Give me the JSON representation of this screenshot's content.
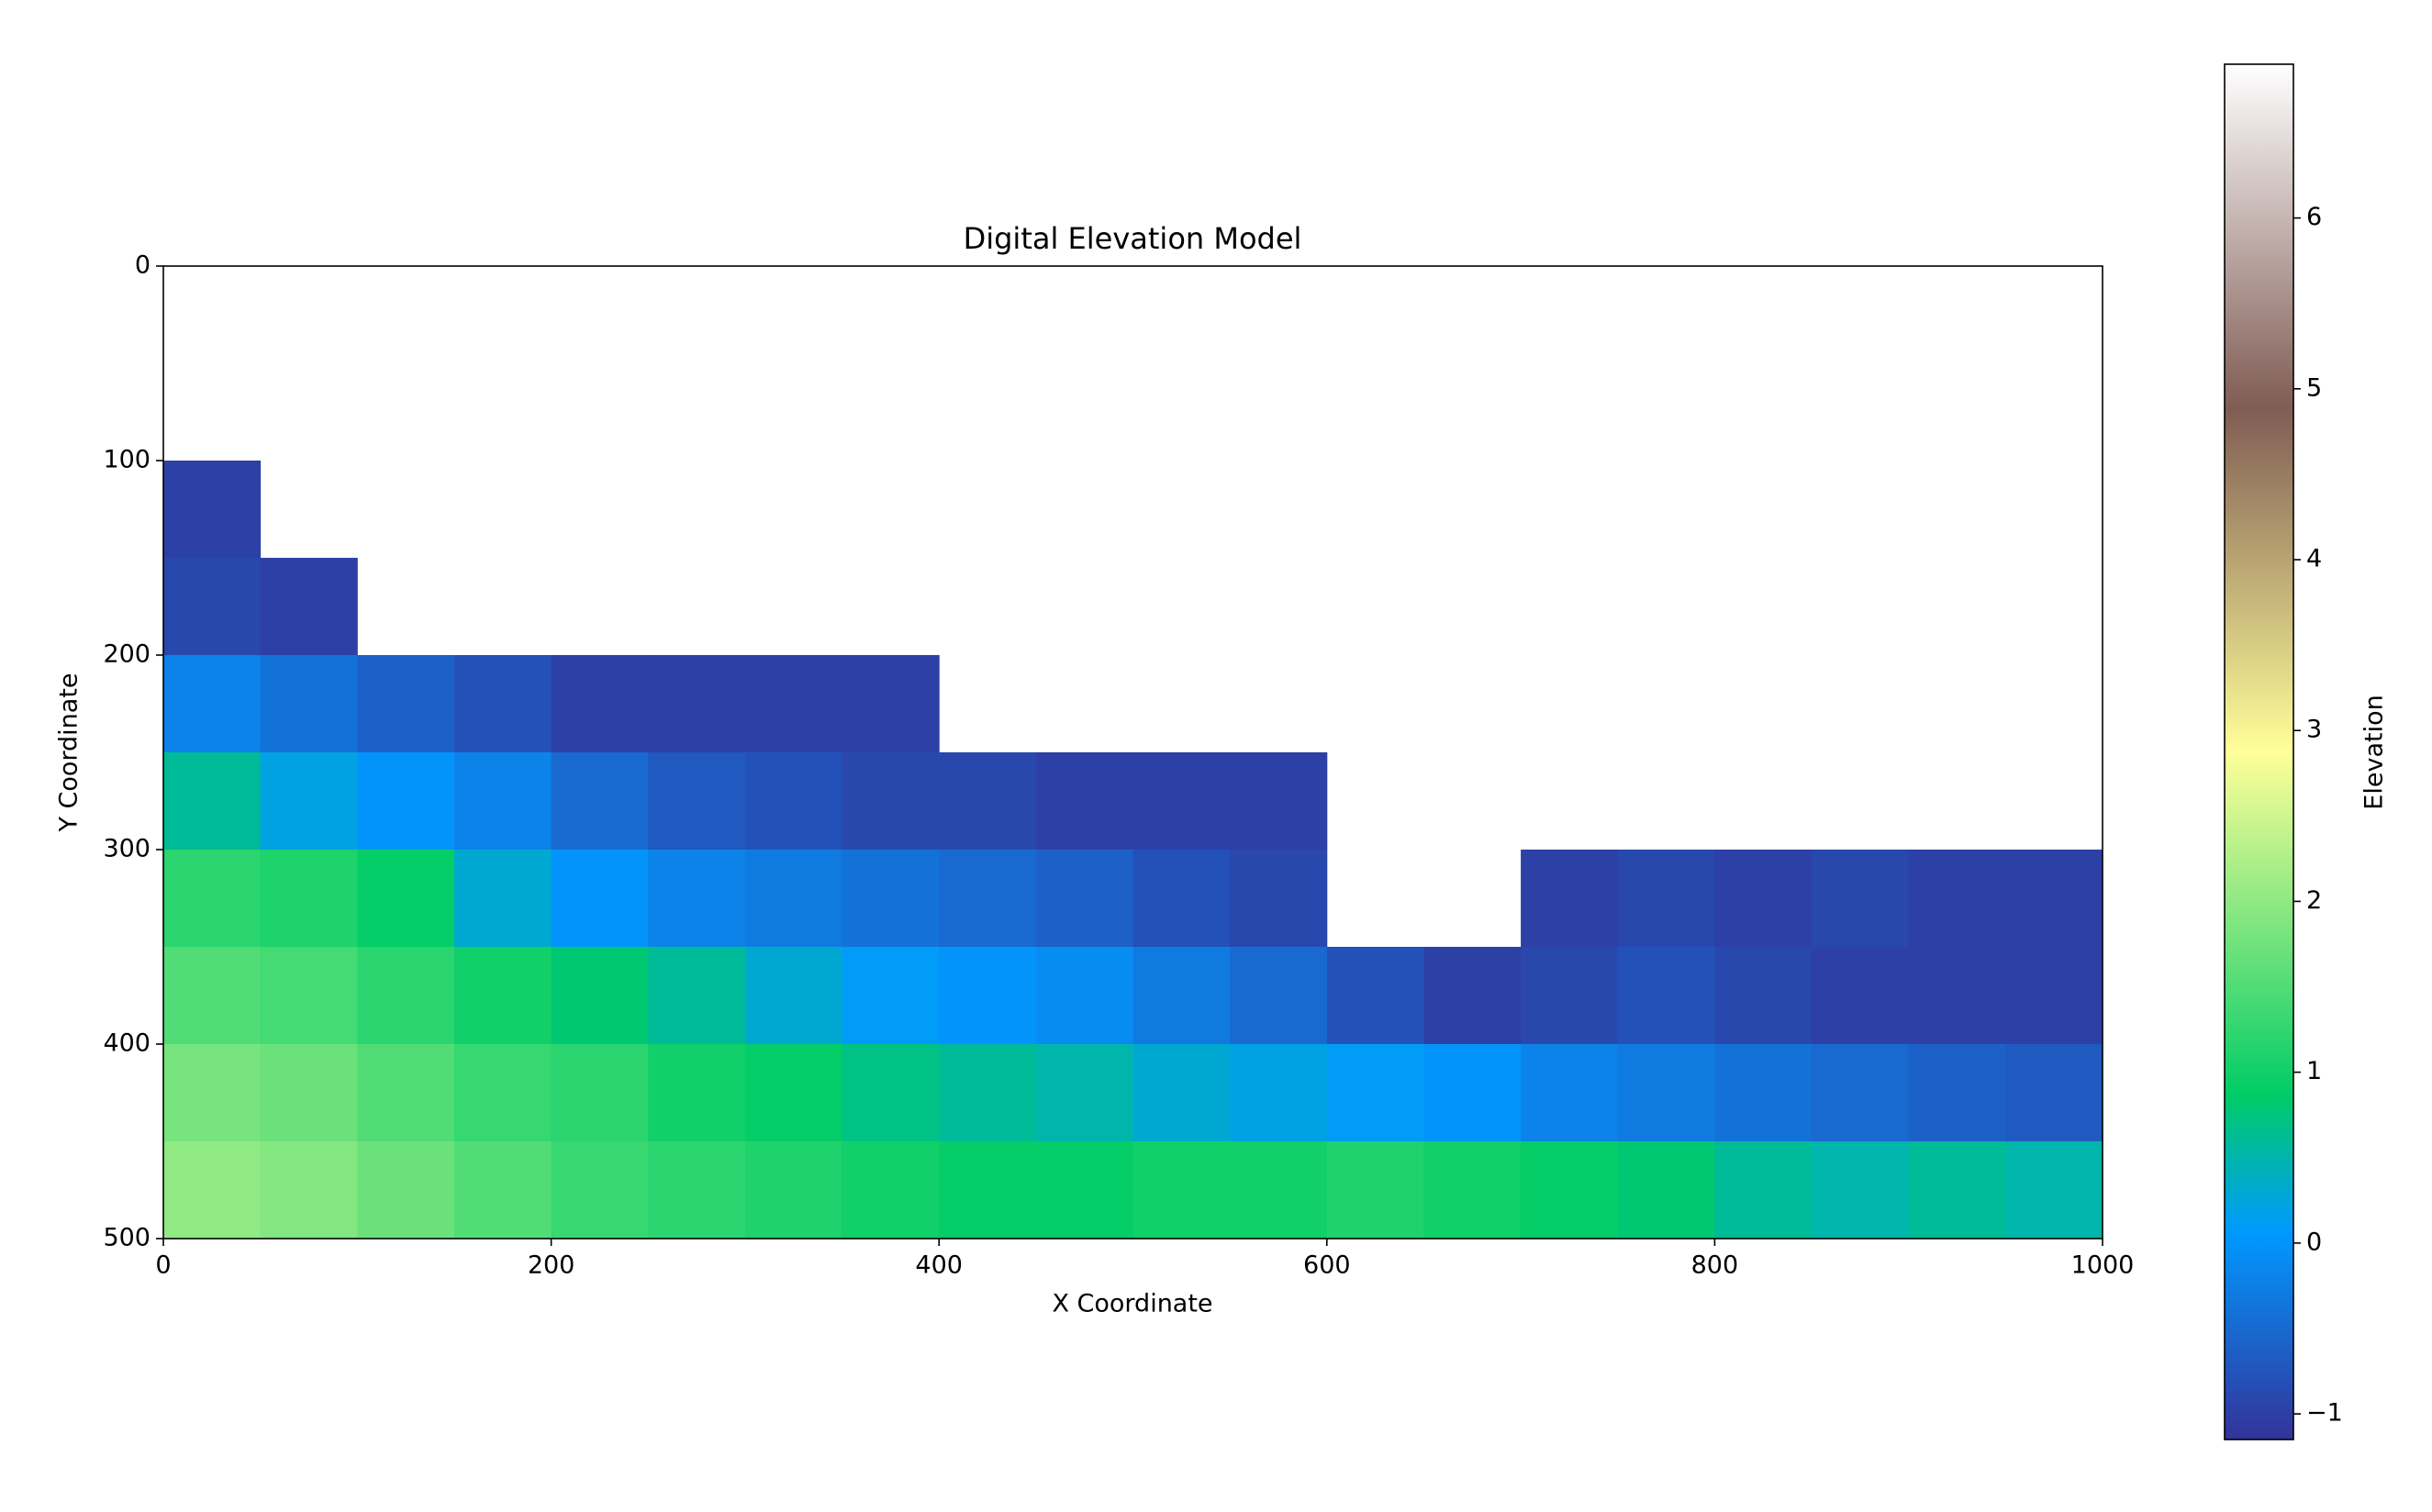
{
  "chart_data": {
    "type": "heatmap",
    "title": "Digital Elevation Model",
    "x_label": "X Coordinate",
    "y_label": "Y Coordinate",
    "xlim": [
      0,
      1000
    ],
    "ylim": [
      500,
      0
    ],
    "xticks": [
      0,
      200,
      400,
      600,
      800,
      1000
    ],
    "yticks": [
      0,
      100,
      200,
      300,
      400,
      500
    ],
    "colormap": "terrain",
    "colorbar": {
      "label": "Elevation",
      "lim": [
        -1.15,
        6.9
      ],
      "ticks": [
        {
          "value": -1,
          "label": "−1"
        },
        0,
        1,
        2,
        3,
        4,
        5,
        6
      ]
    },
    "z": [
      [
        null,
        null,
        null,
        null,
        null,
        null,
        null,
        null,
        null,
        null,
        null,
        null,
        null,
        null,
        null,
        null,
        null,
        null,
        null,
        null
      ],
      [
        null,
        null,
        null,
        null,
        null,
        null,
        null,
        null,
        null,
        null,
        null,
        null,
        null,
        null,
        null,
        null,
        null,
        null,
        null,
        null
      ],
      [
        -1.0,
        null,
        null,
        null,
        null,
        null,
        null,
        null,
        null,
        null,
        null,
        null,
        null,
        null,
        null,
        null,
        null,
        null,
        null,
        null
      ],
      [
        -0.9,
        -1.0,
        null,
        null,
        null,
        null,
        null,
        null,
        null,
        null,
        null,
        null,
        null,
        null,
        null,
        null,
        null,
        null,
        null,
        null
      ],
      [
        -0.2,
        -0.4,
        -0.6,
        -0.8,
        -1.0,
        -1.0,
        -1.0,
        -1.0,
        null,
        null,
        null,
        null,
        null,
        null,
        null,
        null,
        null,
        null,
        null,
        null
      ],
      [
        0.6,
        0.2,
        0.0,
        -0.2,
        -0.5,
        -0.7,
        -0.8,
        -0.9,
        -0.9,
        -1.0,
        -1.0,
        -1.0,
        null,
        null,
        null,
        null,
        null,
        null,
        null,
        null
      ],
      [
        1.2,
        1.1,
        0.9,
        0.3,
        0.0,
        -0.2,
        -0.3,
        -0.4,
        -0.5,
        -0.6,
        -0.8,
        -0.9,
        null,
        null,
        -1.0,
        -0.9,
        -1.0,
        -0.9,
        -1.0,
        -1.0
      ],
      [
        1.5,
        1.4,
        1.2,
        1.0,
        0.8,
        0.6,
        0.3,
        0.1,
        0.0,
        -0.1,
        -0.3,
        -0.5,
        -0.8,
        -1.0,
        -0.9,
        -0.8,
        -0.9,
        -1.0,
        -1.0,
        -1.0
      ],
      [
        1.8,
        1.7,
        1.5,
        1.3,
        1.2,
        1.0,
        0.9,
        0.7,
        0.6,
        0.5,
        0.3,
        0.2,
        0.1,
        0.0,
        -0.2,
        -0.3,
        -0.4,
        -0.5,
        -0.6,
        -0.7
      ],
      [
        2.0,
        1.9,
        1.7,
        1.5,
        1.3,
        1.2,
        1.1,
        1.0,
        0.9,
        0.9,
        1.0,
        1.0,
        1.1,
        1.0,
        0.9,
        0.8,
        0.6,
        0.5,
        0.6,
        0.5
      ]
    ]
  }
}
